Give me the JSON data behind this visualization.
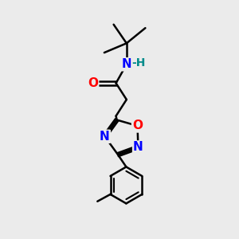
{
  "bg_color": "#ebebeb",
  "bond_color": "#000000",
  "bond_width": 1.8,
  "atom_colors": {
    "N": "#0000ff",
    "O": "#ff0000",
    "H": "#008b8b",
    "C": "#000000"
  },
  "font_size": 10,
  "xlim": [
    0,
    10
  ],
  "ylim": [
    0,
    10
  ]
}
